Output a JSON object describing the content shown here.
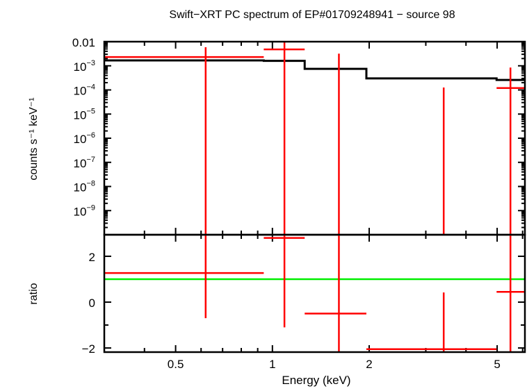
{
  "chart_data": {
    "type": "scatter",
    "title": "Swift−XRT PC spectrum of EP#01709248941 − source 98",
    "xlabel": "Energy (keV)",
    "x_scale": "log",
    "xlim": [
      0.3,
      6.1
    ],
    "x_ticks": [
      {
        "v": 0.5,
        "label": "0.5"
      },
      {
        "v": 1,
        "label": "1"
      },
      {
        "v": 2,
        "label": "2"
      },
      {
        "v": 5,
        "label": "5"
      }
    ],
    "colors": {
      "data": "#ff0000",
      "model": "#000000",
      "unity": "#00ee00",
      "frame": "#000000"
    },
    "panels": [
      {
        "name": "spectrum",
        "ylabel": "counts s⁻¹ keV⁻¹",
        "y_scale": "log",
        "ylim": [
          1e-10,
          0.01
        ],
        "y_ticks": [
          {
            "v": 0.01,
            "base": "0.01",
            "exp": ""
          },
          {
            "v": 0.001,
            "base": "10",
            "exp": "−3"
          },
          {
            "v": 0.0001,
            "base": "10",
            "exp": "−4"
          },
          {
            "v": 1e-05,
            "base": "10",
            "exp": "−5"
          },
          {
            "v": 1e-06,
            "base": "10",
            "exp": "−6"
          },
          {
            "v": 1e-07,
            "base": "10",
            "exp": "−7"
          },
          {
            "v": 1e-08,
            "base": "10",
            "exp": "−8"
          },
          {
            "v": 1e-09,
            "base": "10",
            "exp": "−9"
          }
        ],
        "data": [
          {
            "x": 0.62,
            "xlo": 0.3,
            "xhi": 0.94,
            "y": 0.0023,
            "ylo": 1e-11,
            "yhi": 0.0059
          },
          {
            "x": 1.09,
            "xlo": 0.94,
            "xhi": 1.26,
            "y": 0.0048,
            "ylo": 1e-11,
            "yhi": 0.011
          },
          {
            "x": 1.61,
            "xlo": 1.26,
            "xhi": 1.96,
            "y": null,
            "ylo": 1e-11,
            "yhi": 0.0032
          },
          {
            "x": 3.41,
            "xlo": 1.96,
            "xhi": 4.98,
            "y": null,
            "ylo": 1e-11,
            "yhi": 0.000126
          },
          {
            "x": 5.5,
            "xlo": 4.98,
            "xhi": 6.1,
            "y": 0.00012,
            "ylo": 1e-11,
            "yhi": 0.00085
          }
        ],
        "model": [
          {
            "xlo": 0.3,
            "xhi": 0.94,
            "y": 0.00167
          },
          {
            "xlo": 0.94,
            "xhi": 1.26,
            "y": 0.0016
          },
          {
            "xlo": 1.26,
            "xhi": 1.96,
            "y": 0.00075
          },
          {
            "xlo": 1.96,
            "xhi": 4.98,
            "y": 0.0003
          },
          {
            "xlo": 4.98,
            "xhi": 6.1,
            "y": 0.00026
          }
        ]
      },
      {
        "name": "ratio",
        "ylabel": "ratio",
        "y_scale": "linear",
        "ylim": [
          -2.18,
          2.94
        ],
        "y_ticks": [
          {
            "v": 2,
            "base": "2",
            "exp": ""
          },
          {
            "v": 0,
            "base": "0",
            "exp": ""
          },
          {
            "v": -2,
            "base": "−2",
            "exp": ""
          }
        ],
        "unity": 1,
        "data": [
          {
            "x": 0.62,
            "xlo": 0.3,
            "xhi": 0.94,
            "y": 1.27,
            "ylo": -0.7,
            "yhi": 4
          },
          {
            "x": 1.09,
            "xlo": 0.94,
            "xhi": 1.26,
            "y": 2.8,
            "ylo": -1.1,
            "yhi": 4
          },
          {
            "x": 1.61,
            "xlo": 1.26,
            "xhi": 1.96,
            "y": -0.5,
            "ylo": -3,
            "yhi": 4
          },
          {
            "x": 3.41,
            "xlo": 1.96,
            "xhi": 4.98,
            "y": -2.05,
            "ylo": -3,
            "yhi": 0.42
          },
          {
            "x": 5.5,
            "xlo": 4.98,
            "xhi": 6.1,
            "y": 0.45,
            "ylo": -3,
            "yhi": 4
          }
        ]
      }
    ]
  }
}
